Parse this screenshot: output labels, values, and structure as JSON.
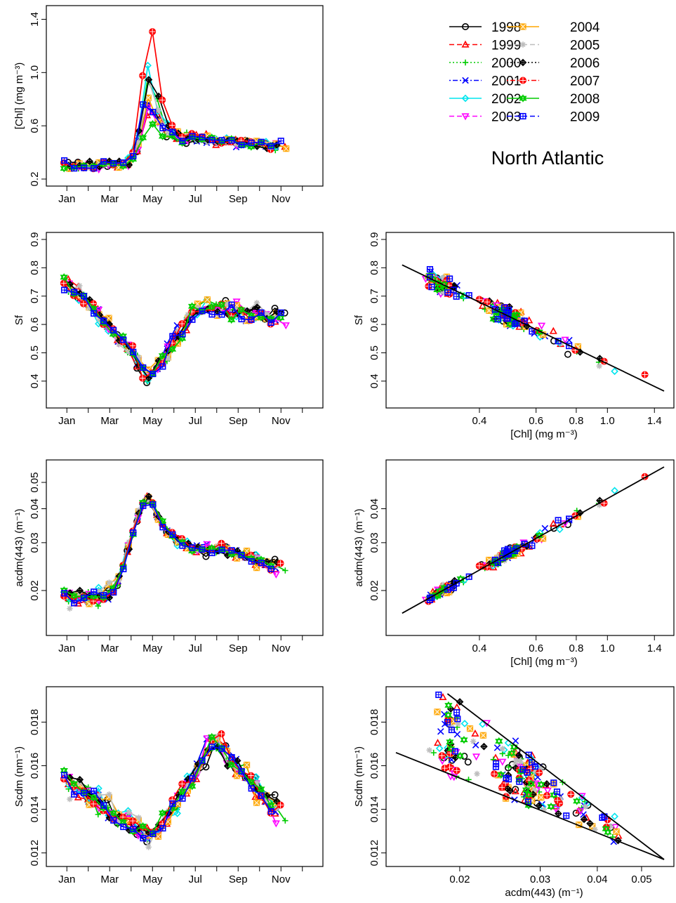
{
  "figure": {
    "region_label": "North Atlantic"
  },
  "legend": {
    "entries": [
      {
        "year": "1998",
        "color": "#000000",
        "marker": "circle",
        "line": "solid"
      },
      {
        "year": "1999",
        "color": "#ff0000",
        "marker": "triangle-up",
        "line": "dashed"
      },
      {
        "year": "2000",
        "color": "#00cc00",
        "marker": "plus",
        "line": "dotted"
      },
      {
        "year": "2001",
        "color": "#0000ff",
        "marker": "cross",
        "line": "dotdash"
      },
      {
        "year": "2002",
        "color": "#00e5ee",
        "marker": "diamond",
        "line": "solid"
      },
      {
        "year": "2003",
        "color": "#ff00ff",
        "marker": "triangle-down",
        "line": "dashed"
      },
      {
        "year": "2004",
        "color": "#ffa500",
        "marker": "square-x",
        "line": "solid"
      },
      {
        "year": "2005",
        "color": "#bebebe",
        "marker": "asterisk",
        "line": "dashed"
      },
      {
        "year": "2006",
        "color": "#000000",
        "marker": "diamond-plus",
        "line": "dotted"
      },
      {
        "year": "2007",
        "color": "#ff0000",
        "marker": "circle-plus",
        "line": "dotdash"
      },
      {
        "year": "2008",
        "color": "#00cc00",
        "marker": "star-of-david",
        "line": "solid"
      },
      {
        "year": "2009",
        "color": "#0000ff",
        "marker": "square-plus",
        "line": "dashed"
      }
    ]
  },
  "chart_data": [
    {
      "id": "chl-seasonal",
      "type": "line",
      "xlabel": "",
      "ylabel": "[Chl] (mg m⁻³)",
      "xlim": [
        0,
        12
      ],
      "ylim": [
        0.2,
        1.45
      ],
      "x_ticks": [
        {
          "v": 0.5,
          "t": "Jan"
        },
        {
          "v": 2.5,
          "t": "Mar"
        },
        {
          "v": 4.5,
          "t": "May"
        },
        {
          "v": 6.5,
          "t": "Jul"
        },
        {
          "v": 8.5,
          "t": "Sep"
        },
        {
          "v": 10.5,
          "t": "Nov"
        }
      ],
      "y_ticks": [
        {
          "v": 0.2,
          "t": "0.2"
        },
        {
          "v": 0.6,
          "t": "0.6"
        },
        {
          "v": 1.0,
          "t": "1.0"
        },
        {
          "v": 1.4,
          "t": "1.4"
        }
      ],
      "seasonal": {
        "base": 0.3,
        "peak": 0.9,
        "peak_month": 4.4,
        "width": 0.55,
        "late": 0.45,
        "tail_level": 0.5,
        "tail_end": 0.42,
        "noise": 0.05,
        "max_peak": 1.44,
        "min_val": 0.22
      }
    },
    {
      "id": "sf-seasonal",
      "type": "line",
      "xlabel": "",
      "ylabel": "Sf",
      "xlim": [
        0,
        12
      ],
      "ylim": [
        0.33,
        0.9
      ],
      "x_ticks": [
        {
          "v": 0.5,
          "t": "Jan"
        },
        {
          "v": 2.5,
          "t": "Mar"
        },
        {
          "v": 4.5,
          "t": "May"
        },
        {
          "v": 6.5,
          "t": "Jul"
        },
        {
          "v": 8.5,
          "t": "Sep"
        },
        {
          "v": 10.5,
          "t": "Nov"
        }
      ],
      "y_ticks": [
        {
          "v": 0.4,
          "t": "0.4"
        },
        {
          "v": 0.5,
          "t": "0.5"
        },
        {
          "v": 0.6,
          "t": "0.6"
        },
        {
          "v": 0.7,
          "t": "0.7"
        },
        {
          "v": 0.8,
          "t": "0.8"
        },
        {
          "v": 0.9,
          "t": "0.9"
        }
      ],
      "seasonal": {
        "jan": 0.76,
        "trough": 0.4,
        "trough_month": 4.5,
        "summer": 0.66,
        "nov": 0.62,
        "noise": 0.05
      }
    },
    {
      "id": "sf-vs-chl",
      "type": "scatter",
      "xlabel": "[Chl] (mg m⁻³)",
      "ylabel": "Sf",
      "x_scale": "log",
      "xlim": [
        0.22,
        1.5
      ],
      "ylim": [
        0.33,
        0.9
      ],
      "x_ticks": [
        {
          "v": 0.4,
          "t": "0.4"
        },
        {
          "v": 0.6,
          "t": "0.6"
        },
        {
          "v": 0.8,
          "t": "0.8"
        },
        {
          "v": 1.0,
          "t": "1.0"
        },
        {
          "v": 1.4,
          "t": "1.4"
        }
      ],
      "y_ticks": [
        {
          "v": 0.4,
          "t": "0.4"
        },
        {
          "v": 0.5,
          "t": "0.5"
        },
        {
          "v": 0.6,
          "t": "0.6"
        },
        {
          "v": 0.7,
          "t": "0.7"
        },
        {
          "v": 0.8,
          "t": "0.8"
        },
        {
          "v": 0.9,
          "t": "0.9"
        }
      ],
      "fit_lines": [
        [
          [
            0.23,
            0.81
          ],
          [
            1.5,
            0.365
          ]
        ]
      ]
    },
    {
      "id": "acdm-seasonal",
      "type": "line",
      "xlabel": "",
      "ylabel": "acdm(443) (m⁻¹)",
      "y_scale": "log",
      "xlim": [
        0,
        12
      ],
      "ylim": [
        0.0145,
        0.057
      ],
      "x_ticks": [
        {
          "v": 0.5,
          "t": "Jan"
        },
        {
          "v": 2.5,
          "t": "Mar"
        },
        {
          "v": 4.5,
          "t": "May"
        },
        {
          "v": 6.5,
          "t": "Jul"
        },
        {
          "v": 8.5,
          "t": "Sep"
        },
        {
          "v": 10.5,
          "t": "Nov"
        }
      ],
      "y_ticks": [
        {
          "v": 0.02,
          "t": "0.02"
        },
        {
          "v": 0.03,
          "t": "0.03"
        },
        {
          "v": 0.04,
          "t": "0.04"
        },
        {
          "v": 0.05,
          "t": "0.05"
        }
      ],
      "seasonal": {
        "jan": 0.019,
        "peak": 0.044,
        "peak_month": 4.4,
        "width": 0.75,
        "summer": 0.028,
        "nov": 0.022,
        "noise": 0.0022
      }
    },
    {
      "id": "acdm-vs-chl",
      "type": "scatter",
      "xlabel": "[Chl] (mg m⁻³)",
      "ylabel": "acdm(443) (m⁻¹)",
      "x_scale": "log",
      "y_scale": "log",
      "xlim": [
        0.22,
        1.5
      ],
      "ylim": [
        0.0145,
        0.057
      ],
      "x_ticks": [
        {
          "v": 0.4,
          "t": "0.4"
        },
        {
          "v": 0.6,
          "t": "0.6"
        },
        {
          "v": 0.8,
          "t": "0.8"
        },
        {
          "v": 1.0,
          "t": "1.0"
        },
        {
          "v": 1.4,
          "t": "1.4"
        }
      ],
      "y_ticks": [
        {
          "v": 0.02,
          "t": "0.02"
        },
        {
          "v": 0.03,
          "t": "0.03"
        },
        {
          "v": 0.04,
          "t": "0.04"
        }
      ],
      "fit_lines": [
        [
          [
            0.23,
            0.0165
          ],
          [
            1.5,
            0.057
          ]
        ]
      ]
    },
    {
      "id": "scdm-seasonal",
      "type": "line",
      "xlabel": "",
      "ylabel": "Scdm (nm⁻¹)",
      "xlim": [
        0,
        12
      ],
      "ylim": [
        0.0117,
        0.0193
      ],
      "x_ticks": [
        {
          "v": 0.5,
          "t": "Jan"
        },
        {
          "v": 2.5,
          "t": "Mar"
        },
        {
          "v": 4.5,
          "t": "May"
        },
        {
          "v": 6.5,
          "t": "Jul"
        },
        {
          "v": 8.5,
          "t": "Sep"
        },
        {
          "v": 10.5,
          "t": "Nov"
        }
      ],
      "y_ticks": [
        {
          "v": 0.012,
          "t": "0.012"
        },
        {
          "v": 0.014,
          "t": "0.014"
        },
        {
          "v": 0.016,
          "t": "0.016"
        },
        {
          "v": 0.018,
          "t": "0.018"
        }
      ],
      "seasonal": {
        "jan": 0.0155,
        "trough": 0.0127,
        "trough_month": 4.3,
        "summer": 0.0172,
        "summer_month": 7.3,
        "nov": 0.0138,
        "noise": 0.0009
      }
    },
    {
      "id": "scdm-vs-acdm",
      "type": "scatter",
      "xlabel": "acdm(443) (m⁻¹)",
      "ylabel": "Scdm (nm⁻¹)",
      "x_scale": "log",
      "xlim": [
        0.0145,
        0.056
      ],
      "ylim": [
        0.0117,
        0.0193
      ],
      "x_ticks": [
        {
          "v": 0.02,
          "t": "0.02"
        },
        {
          "v": 0.03,
          "t": "0.03"
        },
        {
          "v": 0.04,
          "t": "0.04"
        },
        {
          "v": 0.05,
          "t": "0.05"
        }
      ],
      "y_ticks": [
        {
          "v": 0.012,
          "t": "0.012"
        },
        {
          "v": 0.014,
          "t": "0.014"
        },
        {
          "v": 0.016,
          "t": "0.016"
        },
        {
          "v": 0.018,
          "t": "0.018"
        }
      ],
      "fit_lines": [
        [
          [
            0.0145,
            0.0166
          ],
          [
            0.056,
            0.0117
          ]
        ],
        [
          [
            0.0188,
            0.0193
          ],
          [
            0.056,
            0.0117
          ]
        ]
      ]
    }
  ]
}
